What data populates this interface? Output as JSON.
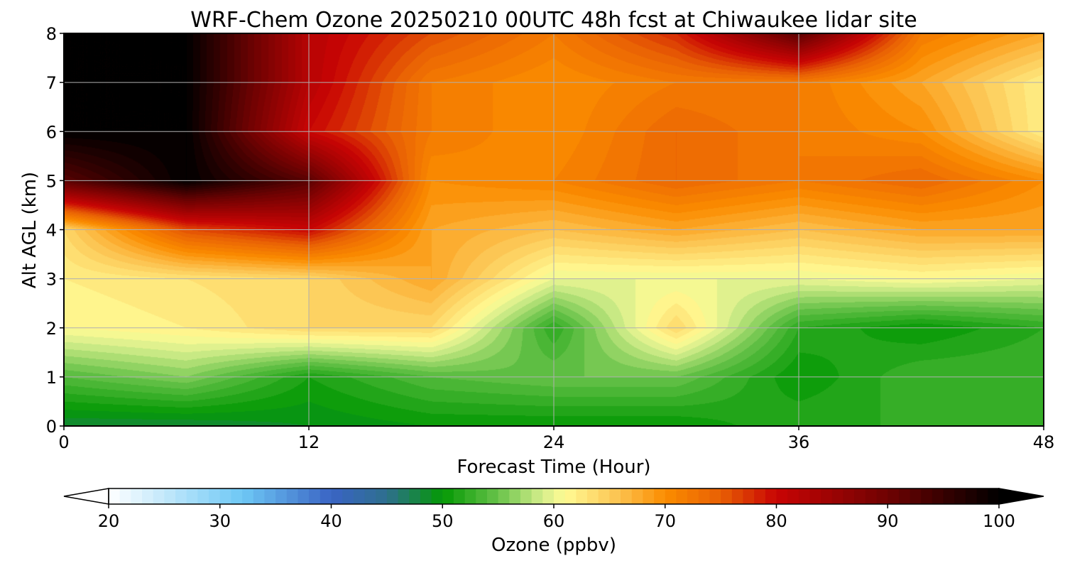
{
  "chart_data": {
    "type": "heatmap",
    "title": "WRF-Chem Ozone  20250210 00UTC 48h fcst at Chiwaukee lidar site",
    "xlabel": "Forecast Time (Hour)",
    "ylabel": "Alt AGL (km)",
    "xlim": [
      0,
      48
    ],
    "ylim": [
      0,
      8
    ],
    "grid": true,
    "x_ticks": [
      "0",
      "12",
      "24",
      "36",
      "48"
    ],
    "y_ticks": [
      "0",
      "1",
      "2",
      "3",
      "4",
      "5",
      "6",
      "7",
      "8"
    ],
    "x": [
      0,
      6,
      12,
      18,
      24,
      30,
      36,
      42,
      48
    ],
    "y": [
      0,
      1,
      2,
      3,
      4,
      5,
      6,
      7,
      8
    ],
    "z": [
      [
        48,
        48,
        49,
        50,
        50,
        50,
        52,
        52,
        52
      ],
      [
        54,
        56,
        51,
        54,
        55,
        55,
        50,
        53,
        53
      ],
      [
        61,
        62,
        64,
        64,
        52,
        64,
        52,
        50,
        52
      ],
      [
        62,
        63,
        64,
        68,
        60,
        60,
        60,
        61,
        60
      ],
      [
        64,
        76,
        80,
        68,
        66,
        68,
        66,
        68,
        68
      ],
      [
        92,
        100,
        92,
        70,
        71,
        74,
        72,
        74,
        70
      ],
      [
        100,
        100,
        80,
        72,
        70,
        74,
        72,
        70,
        62
      ],
      [
        100,
        100,
        82,
        72,
        70,
        72,
        72,
        68,
        62
      ],
      [
        100,
        100,
        82,
        76,
        72,
        78,
        92,
        72,
        68
      ]
    ],
    "colorbar": {
      "label": "Ozone  (ppbv)",
      "min": 20,
      "max": 100,
      "extend": "both",
      "ticks": [
        "20",
        "30",
        "40",
        "50",
        "60",
        "70",
        "80",
        "90",
        "100"
      ],
      "tick_values": [
        20,
        30,
        40,
        50,
        60,
        70,
        80,
        90,
        100
      ],
      "color_stops": [
        [
          20,
          "#ffffff"
        ],
        [
          32,
          "#6ec8f5"
        ],
        [
          40,
          "#3a64c4"
        ],
        [
          45,
          "#2e6f8e"
        ],
        [
          50,
          "#049904"
        ],
        [
          55,
          "#68c24a"
        ],
        [
          59,
          "#d6ee8c"
        ],
        [
          61,
          "#fffb94"
        ],
        [
          66,
          "#fcc04d"
        ],
        [
          70,
          "#fb8c00"
        ],
        [
          75,
          "#e85f04"
        ],
        [
          80,
          "#c80404"
        ],
        [
          90,
          "#6e0202"
        ],
        [
          100,
          "#000000"
        ]
      ]
    }
  }
}
